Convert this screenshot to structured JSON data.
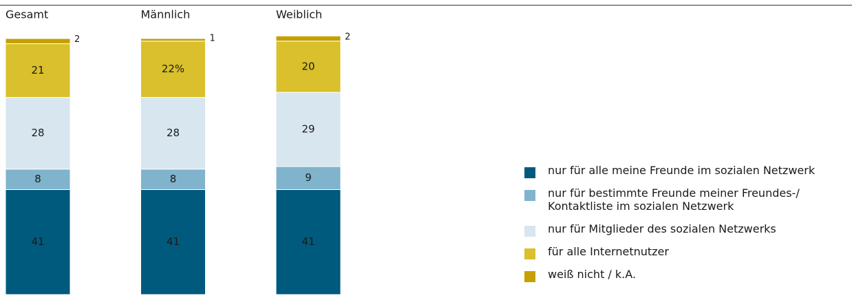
{
  "chart_data": {
    "type": "stacked_bar",
    "categories": [
      "Gesamt",
      "Männlich",
      "Weiblich"
    ],
    "series": [
      {
        "name": "nur für alle meine Freunde im sozialen Netzwerk",
        "color": "#005a7d",
        "values": [
          41,
          41,
          41
        ]
      },
      {
        "name": "nur für bestimmte Freunde meiner Freundes-/\nKontaktliste im sozialen Netzwerk",
        "color": "#80b3cc",
        "values": [
          8,
          8,
          9
        ]
      },
      {
        "name": "nur für Mitglieder des sozialen Netzwerks",
        "color": "#d7e6ef",
        "values": [
          28,
          28,
          29
        ]
      },
      {
        "name": "für alle Internetnutzer",
        "color": "#d9c02c",
        "values": [
          21,
          22,
          20
        ],
        "value_labels": [
          "21",
          "22%",
          "20"
        ]
      },
      {
        "name": "weiß nicht / k.A.",
        "color": "#c4a000",
        "values": [
          2,
          1,
          2
        ]
      }
    ]
  }
}
